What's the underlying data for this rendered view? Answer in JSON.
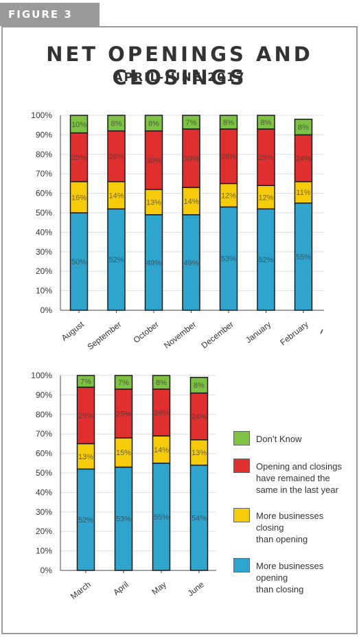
{
  "figure_label": "FIGURE 3",
  "title": "NET OPENINGS AND CLOSINGS",
  "subtitle": "APRIL-JUNE 2017",
  "colors": {
    "dont_know": "#7dc242",
    "remained_same": "#e02f2f",
    "more_closing": "#f6cc0a",
    "more_opening": "#2fa4cd"
  },
  "legend": [
    {
      "key": "dont_know",
      "label": "Don’t Know"
    },
    {
      "key": "remained_same",
      "label": "Opening and closings\nhave remained the\nsame in the last year"
    },
    {
      "key": "more_closing",
      "label": "More businesses\nclosing\nthan opening"
    },
    {
      "key": "more_opening",
      "label": "More businesses\nopening\nthan closing"
    }
  ],
  "chart_data": [
    {
      "type": "bar",
      "stacked": true,
      "categories": [
        "August",
        "September",
        "October",
        "November",
        "December",
        "January",
        "February"
      ],
      "y_tick_labels": [
        "0%",
        "10%",
        "20%",
        "30%",
        "40%",
        "50%",
        "60%",
        "70%",
        "80%",
        "90%",
        "100%"
      ],
      "ylim": [
        0,
        100
      ],
      "series": [
        {
          "key": "more_opening",
          "values": [
            50,
            52,
            49,
            49,
            53,
            52,
            55
          ],
          "labels": [
            "50%",
            "52%",
            "49%",
            "49%",
            "53%",
            "52%",
            "55%"
          ]
        },
        {
          "key": "more_closing",
          "values": [
            16,
            14,
            13,
            14,
            12,
            12,
            11
          ],
          "labels": [
            "16%",
            "14%",
            "13%",
            "14%",
            "12%",
            "12%",
            "11%"
          ]
        },
        {
          "key": "remained_same",
          "values": [
            25,
            26,
            30,
            30,
            28,
            29,
            24
          ],
          "labels": [
            "25%",
            "26%",
            "30%",
            "30%",
            "28%",
            "29%",
            "24%"
          ]
        },
        {
          "key": "dont_know",
          "values": [
            10,
            8,
            8,
            7,
            8,
            8,
            8
          ],
          "labels": [
            "10%",
            "8%",
            "8%",
            "7%",
            "8%",
            "8%",
            "8%"
          ]
        }
      ]
    },
    {
      "type": "bar",
      "stacked": true,
      "categories": [
        "March",
        "April",
        "May",
        "June"
      ],
      "y_tick_labels": [
        "0%",
        "10%",
        "20%",
        "30%",
        "40%",
        "50%",
        "60%",
        "70%",
        "80%",
        "90%",
        "100%"
      ],
      "ylim": [
        0,
        100
      ],
      "series": [
        {
          "key": "more_opening",
          "values": [
            52,
            53,
            55,
            54
          ],
          "labels": [
            "52%",
            "53%",
            "55%",
            "54%"
          ]
        },
        {
          "key": "more_closing",
          "values": [
            13,
            15,
            14,
            13
          ],
          "labels": [
            "13%",
            "15%",
            "14%",
            "13%"
          ]
        },
        {
          "key": "remained_same",
          "values": [
            29,
            25,
            24,
            24
          ],
          "labels": [
            "29%",
            "25%",
            "24%",
            "24%"
          ]
        },
        {
          "key": "dont_know",
          "values": [
            7,
            7,
            8,
            8
          ],
          "labels": [
            "7%",
            "7%",
            "8%",
            "8%"
          ]
        }
      ]
    }
  ]
}
